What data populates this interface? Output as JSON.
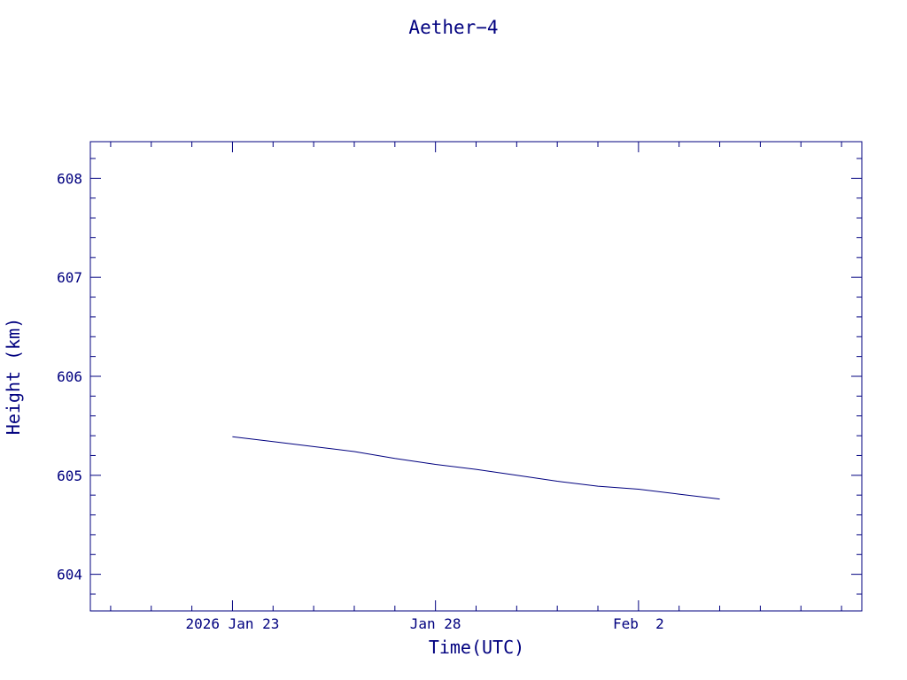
{
  "chart_data": {
    "type": "line",
    "title": "Aether−4",
    "xlabel": "Time(UTC)",
    "ylabel": "Height (km)",
    "x_axis": {
      "range": [
        "2026-01-19T12:00",
        "2026-02-07T12:00"
      ],
      "ticks": [
        {
          "date": "2026-01-23",
          "label": "2026 Jan 23"
        },
        {
          "date": "2026-01-28",
          "label": "Jan 28"
        },
        {
          "date": "2026-02-02",
          "label": "Feb  2"
        }
      ]
    },
    "y_axis": {
      "range": [
        603.63,
        608.37
      ],
      "ticks": [
        604,
        605,
        606,
        607,
        608
      ]
    },
    "grid": false,
    "color": "#00007f",
    "series": [
      {
        "x": [
          "2026-01-23T00:00",
          "2026-01-24T00:00",
          "2026-01-25T00:00",
          "2026-01-26T00:00",
          "2026-01-27T00:00",
          "2026-01-28T00:00",
          "2026-01-29T00:00",
          "2026-01-30T00:00",
          "2026-01-31T00:00",
          "2026-02-01T00:00",
          "2026-02-02T00:00",
          "2026-02-03T00:00",
          "2026-02-04T00:00"
        ],
        "y": [
          605.39,
          605.34,
          605.29,
          605.24,
          605.17,
          605.11,
          605.06,
          605.0,
          604.94,
          604.89,
          604.86,
          604.81,
          604.76
        ],
        "values": [
          605.39,
          605.34,
          605.29,
          605.24,
          605.17,
          605.11,
          605.06,
          605.0,
          604.94,
          604.89,
          604.86,
          604.81,
          604.76
        ]
      }
    ]
  }
}
